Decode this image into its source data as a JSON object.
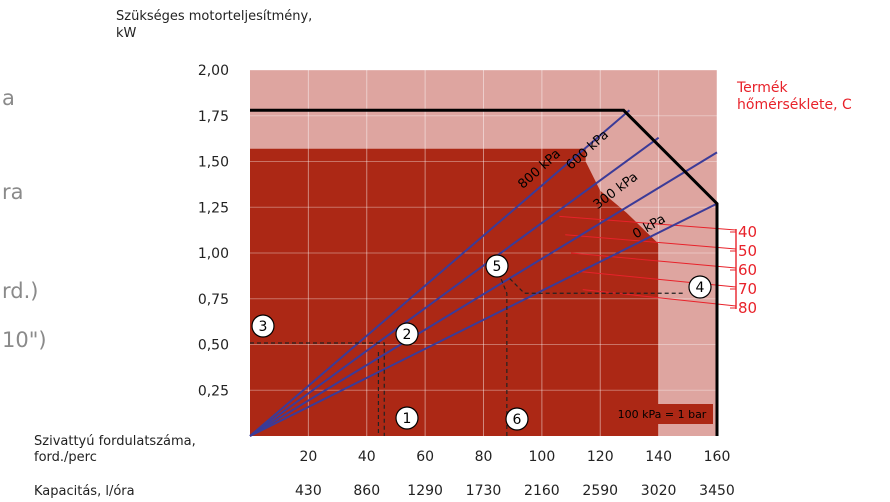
{
  "left_fragments": [
    "a",
    "ra",
    "rd.)",
    "10\")"
  ],
  "chart_data": {
    "type": "line",
    "ylabel": "Szükséges motorteljesítmény,\nkW",
    "ylim": [
      0,
      2.0
    ],
    "y_ticks": [
      "2,00",
      "1,75",
      "1,50",
      "1,25",
      "1,00",
      "0,75",
      "0,50",
      "0,25"
    ],
    "y_tick_values": [
      2.0,
      1.75,
      1.5,
      1.25,
      1.0,
      0.75,
      0.5,
      0.25
    ],
    "x_label_speed": "Szivattyú fordulatszáma,\nford./perc",
    "x_ticks_speed": [
      "20",
      "40",
      "60",
      "80",
      "100",
      "120",
      "140",
      "160"
    ],
    "x_tick_values": [
      20,
      40,
      60,
      80,
      100,
      120,
      140,
      160
    ],
    "x_label_capacity": "Kapacitás, l/óra",
    "x_ticks_capacity": [
      "430",
      "860",
      "1290",
      "1730",
      "2160",
      "2590",
      "3020",
      "3450"
    ],
    "xlim": [
      0,
      160
    ],
    "series": [
      {
        "name": "800 kPa",
        "x": [
          0,
          130
        ],
        "y": [
          0,
          1.78
        ]
      },
      {
        "name": "600 kPa",
        "x": [
          0,
          140
        ],
        "y": [
          0,
          1.63
        ]
      },
      {
        "name": "300 kPa",
        "x": [
          0,
          160
        ],
        "y": [
          0,
          1.55
        ]
      },
      {
        "name": "0 kPa",
        "x": [
          0,
          160
        ],
        "y": [
          0,
          1.27
        ]
      }
    ],
    "max_power_envelope": {
      "x": [
        0,
        128,
        160,
        160
      ],
      "y": [
        1.78,
        1.78,
        1.27,
        0
      ]
    },
    "temperature_label": "Termék\nhőmérséklete, C",
    "temperature_ticks": [
      "40",
      "50",
      "60",
      "70",
      "80"
    ],
    "example_markers": [
      "1",
      "2",
      "3",
      "4",
      "5",
      "6"
    ],
    "note": "100 kPa = 1 bar",
    "colors": {
      "light_region": "#dea5a0",
      "dark_region": "#ac2815",
      "curve": "#3b3b98",
      "temperature": "#e8222a",
      "envelope": "#000000"
    }
  }
}
